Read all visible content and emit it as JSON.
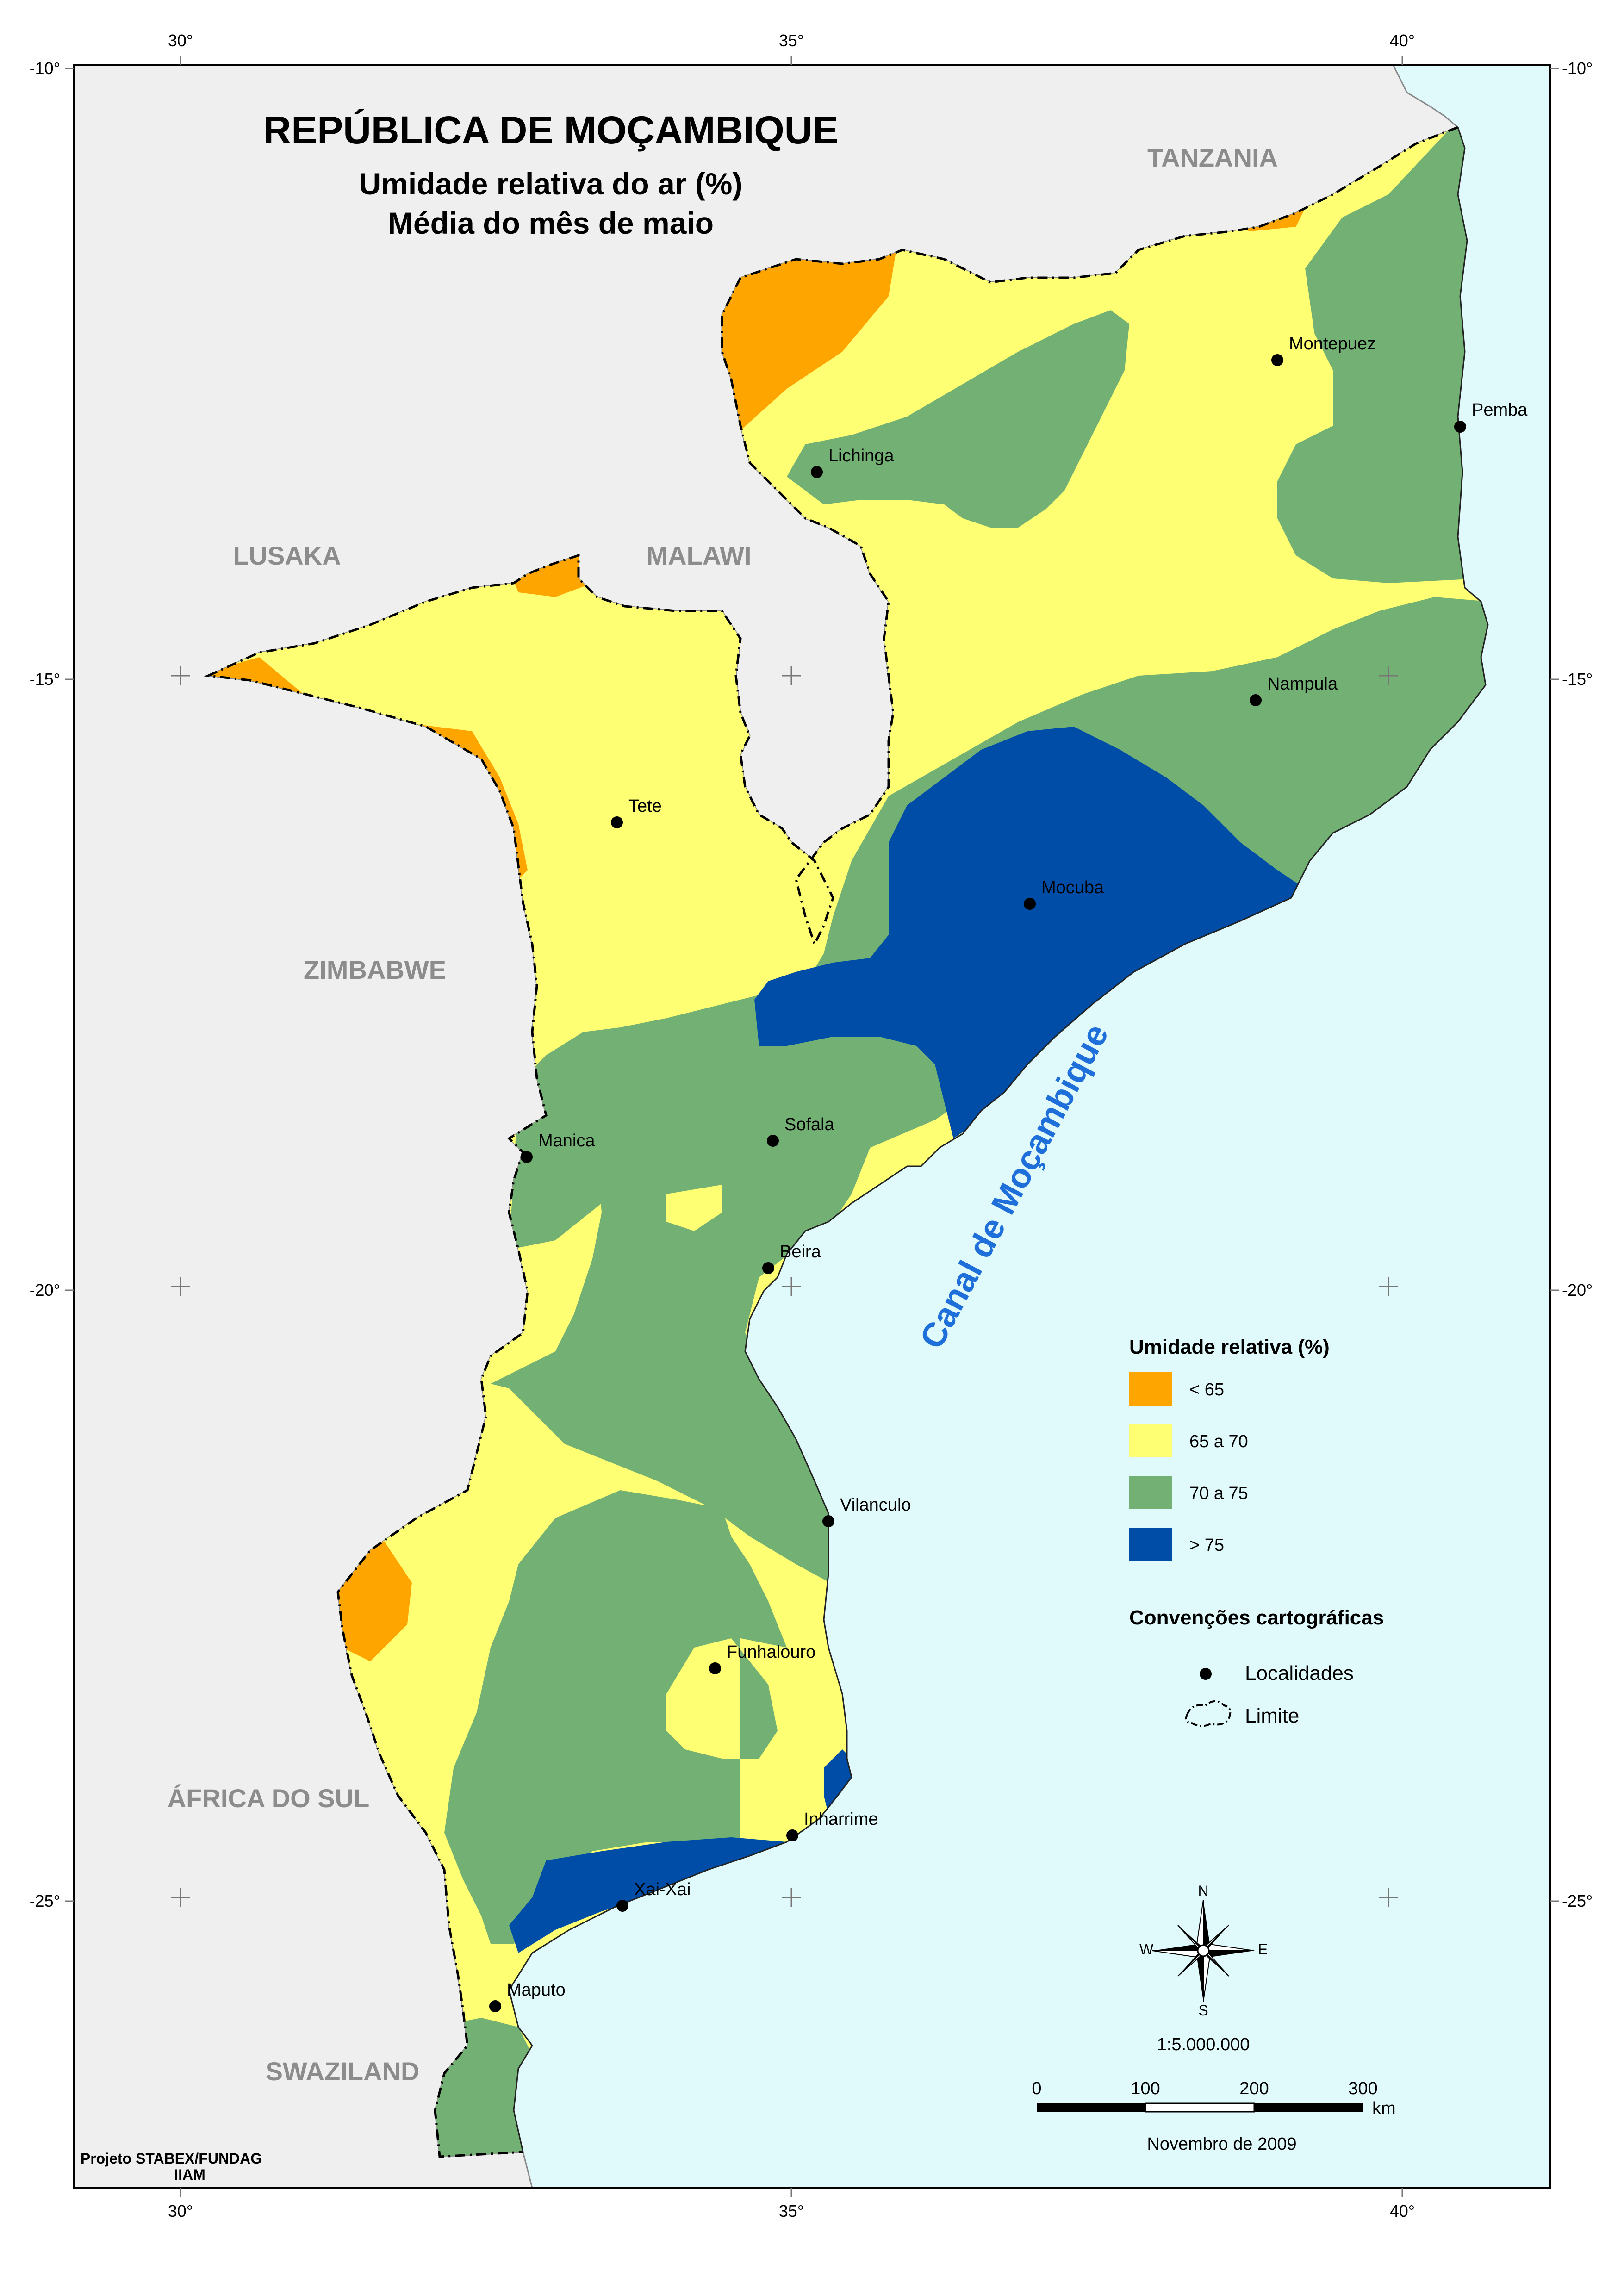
{
  "title": "REPÚBLICA DE MOÇAMBIQUE",
  "subtitle1": "Umidade relativa do ar (%)",
  "subtitle2": "Média do mês de maio",
  "countries": {
    "tanzania": "TANZANIA",
    "lusaka": "LUSAKA",
    "malawi": "MALAWI",
    "zimbabwe": "ZIMBABWE",
    "south_africa": "ÁFRICA DO SUL",
    "swaziland": "SWAZILAND"
  },
  "sea_label": "Canal de Moçambique",
  "coords": {
    "lon30": "30°",
    "lon35": "35°",
    "lon40": "40°",
    "lat10": "-10°",
    "lat15": "-15°",
    "lat20": "-20°",
    "lat25": "-25°"
  },
  "cities": {
    "montepuez": "Montepuez",
    "pemba": "Pemba",
    "lichinga": "Lichinga",
    "nampula": "Nampula",
    "tete": "Tete",
    "mocuba": "Mocuba",
    "manica": "Manica",
    "sofala": "Sofala",
    "beira": "Beira",
    "vilanculo": "Vilanculo",
    "funhalouro": "Funhalouro",
    "inharrime": "Inharrime",
    "xaixai": "Xai-Xai",
    "maputo": "Maputo"
  },
  "legend": {
    "title": "Umidade relativa (%)",
    "classes": [
      {
        "label": "< 65",
        "color": "#FFA500"
      },
      {
        "label": "65 a 70",
        "color": "#FFFF73"
      },
      {
        "label": "70 a 75",
        "color": "#72B173"
      },
      {
        "label": "> 75",
        "color": "#004DA8"
      }
    ],
    "conventions_title": "Convenções cartográficas",
    "localities": "Localidades",
    "limit": "Limite"
  },
  "compass": {
    "n": "N",
    "s": "S",
    "e": "E",
    "w": "W"
  },
  "scale": {
    "ratio": "1:5.000.000",
    "ticks": [
      "0",
      "100",
      "200",
      "300"
    ],
    "unit": "km"
  },
  "date": "Novembro de 2009",
  "credit1": "Projeto STABEX/FUNDAG",
  "credit2": "IIAM",
  "colors": {
    "sea": "#E0FAFC",
    "land": "#EFEFEF",
    "orange": "#FFA500",
    "yellow": "#FFFF73",
    "green": "#72B173",
    "blue": "#004DA8",
    "sea_label": "#1E6FD9"
  }
}
